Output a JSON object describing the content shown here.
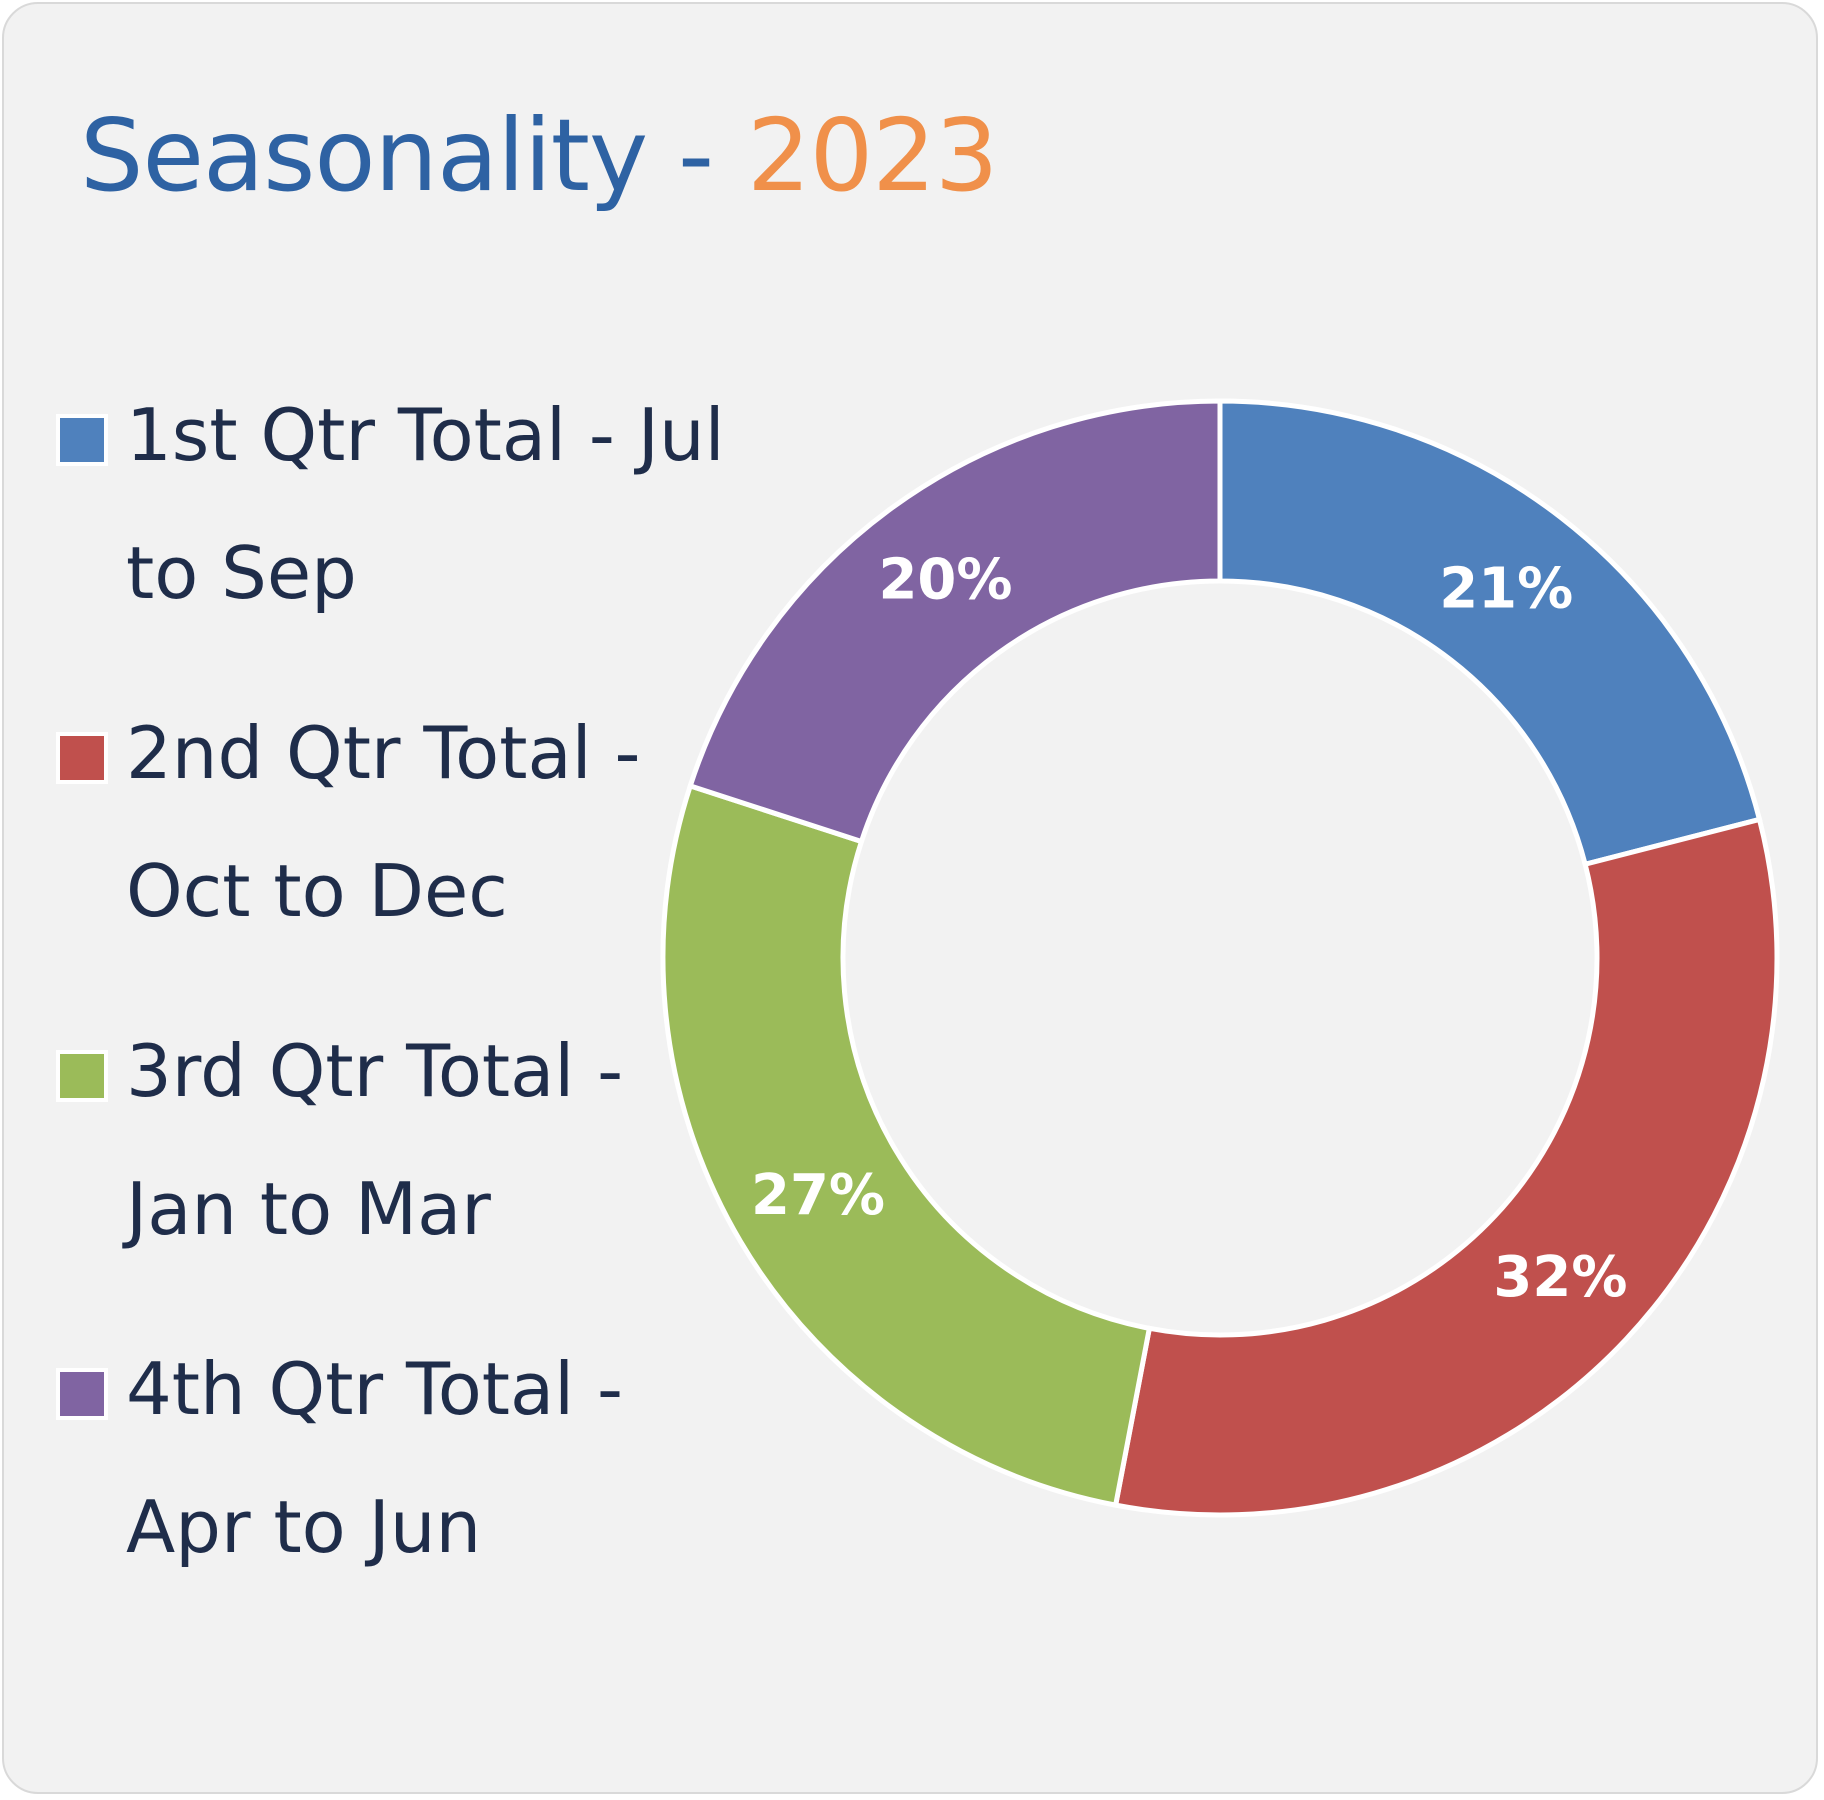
{
  "chart_data": {
    "type": "pie",
    "variant": "donut",
    "title": "Seasonality -",
    "subtitle": "2023",
    "legend": "left",
    "labels": [
      "1st Qtr Total - Jul to Sep",
      "2nd Qtr Total - Oct to Dec",
      "3rd Qtr Total - Jan to Mar",
      "4th Qtr Total - Apr to Jun"
    ],
    "values": [
      21,
      32,
      27,
      20
    ],
    "data_labels": [
      "21%",
      "32%",
      "27%",
      "20%"
    ],
    "colors": [
      "#4f81bd",
      "#c0504d",
      "#9bbb59",
      "#8064a2"
    ]
  }
}
